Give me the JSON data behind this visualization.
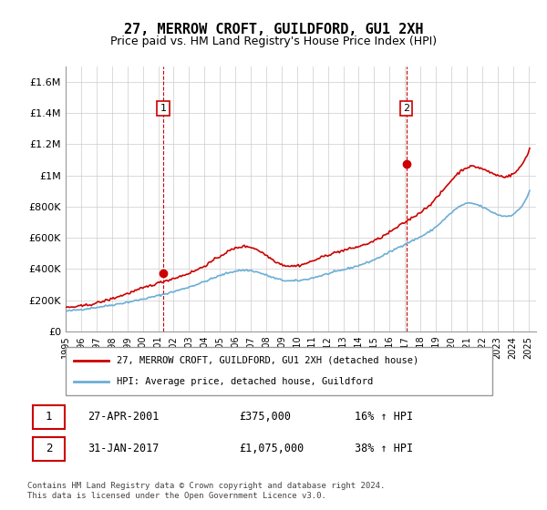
{
  "title": "27, MERROW CROFT, GUILDFORD, GU1 2XH",
  "subtitle": "Price paid vs. HM Land Registry's House Price Index (HPI)",
  "legend_line1": "27, MERROW CROFT, GUILDFORD, GU1 2XH (detached house)",
  "legend_line2": "HPI: Average price, detached house, Guildford",
  "transaction1_label": "1",
  "transaction1_date": "27-APR-2001",
  "transaction1_price": "£375,000",
  "transaction1_hpi": "16% ↑ HPI",
  "transaction2_label": "2",
  "transaction2_date": "31-JAN-2017",
  "transaction2_price": "£1,075,000",
  "transaction2_hpi": "38% ↑ HPI",
  "footer": "Contains HM Land Registry data © Crown copyright and database right 2024.\nThis data is licensed under the Open Government Licence v3.0.",
  "hpi_color": "#6baed6",
  "price_color": "#cc0000",
  "marker_color_red": "#cc0000",
  "vline_color": "#cc0000",
  "grid_color": "#cccccc",
  "bg_color": "#ffffff",
  "ylim": [
    0,
    1700000
  ],
  "yticks": [
    0,
    200000,
    400000,
    600000,
    800000,
    1000000,
    1200000,
    1400000,
    1600000
  ],
  "ytick_labels": [
    "£0",
    "£200K",
    "£400K",
    "£600K",
    "£800K",
    "£1M",
    "£1.2M",
    "£1.4M",
    "£1.6M"
  ],
  "x_start_year": 1995,
  "x_end_year": 2025,
  "transaction1_year": 2001.32,
  "transaction2_year": 2017.08,
  "transaction1_price_val": 375000,
  "transaction2_price_val": 1075000
}
